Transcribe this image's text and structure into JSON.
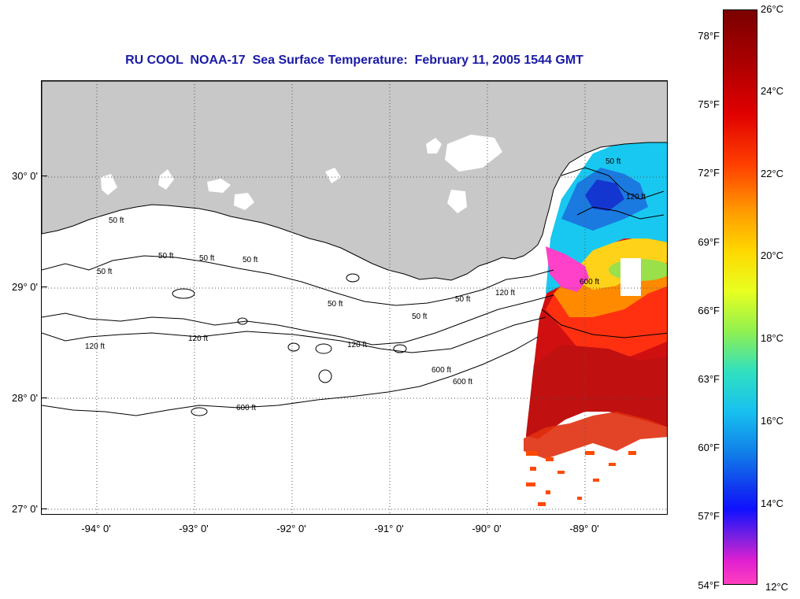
{
  "title": "RU COOL  NOAA-17  Sea Surface Temperature:  February 11, 2005 1544 GMT",
  "map": {
    "lat_labels": [
      "30° 0'",
      "29° 0'",
      "28° 0'",
      "27° 0'"
    ],
    "lon_labels": [
      "-94° 0'",
      "-93° 0'",
      "-92° 0'",
      "-91° 0'",
      "-90° 0'",
      "-89° 0'"
    ],
    "contour_labels": [
      "50 ft",
      "50 ft",
      "50 ft",
      "50 ft",
      "50 ft",
      "50 ft",
      "50 ft",
      "50 ft",
      "120 ft",
      "120 ft",
      "120 ft",
      "120 ft",
      "600 ft",
      "600 ft",
      "600 ft",
      "600 ft",
      "120 ft",
      "50 ft"
    ],
    "colors": {
      "land": "#c8c8c8",
      "ocean": "#ffffff",
      "title": "#1a1aa6"
    }
  },
  "colorbar": {
    "fahrenheit_labels": [
      "78°F",
      "75°F",
      "72°F",
      "69°F",
      "66°F",
      "63°F",
      "60°F",
      "57°F",
      "54°F"
    ],
    "celsius_labels": [
      "26°C",
      "24°C",
      "22°C",
      "20°C",
      "18°C",
      "16°C",
      "14°C",
      "12°C"
    ],
    "range_c": [
      12,
      26
    ]
  }
}
